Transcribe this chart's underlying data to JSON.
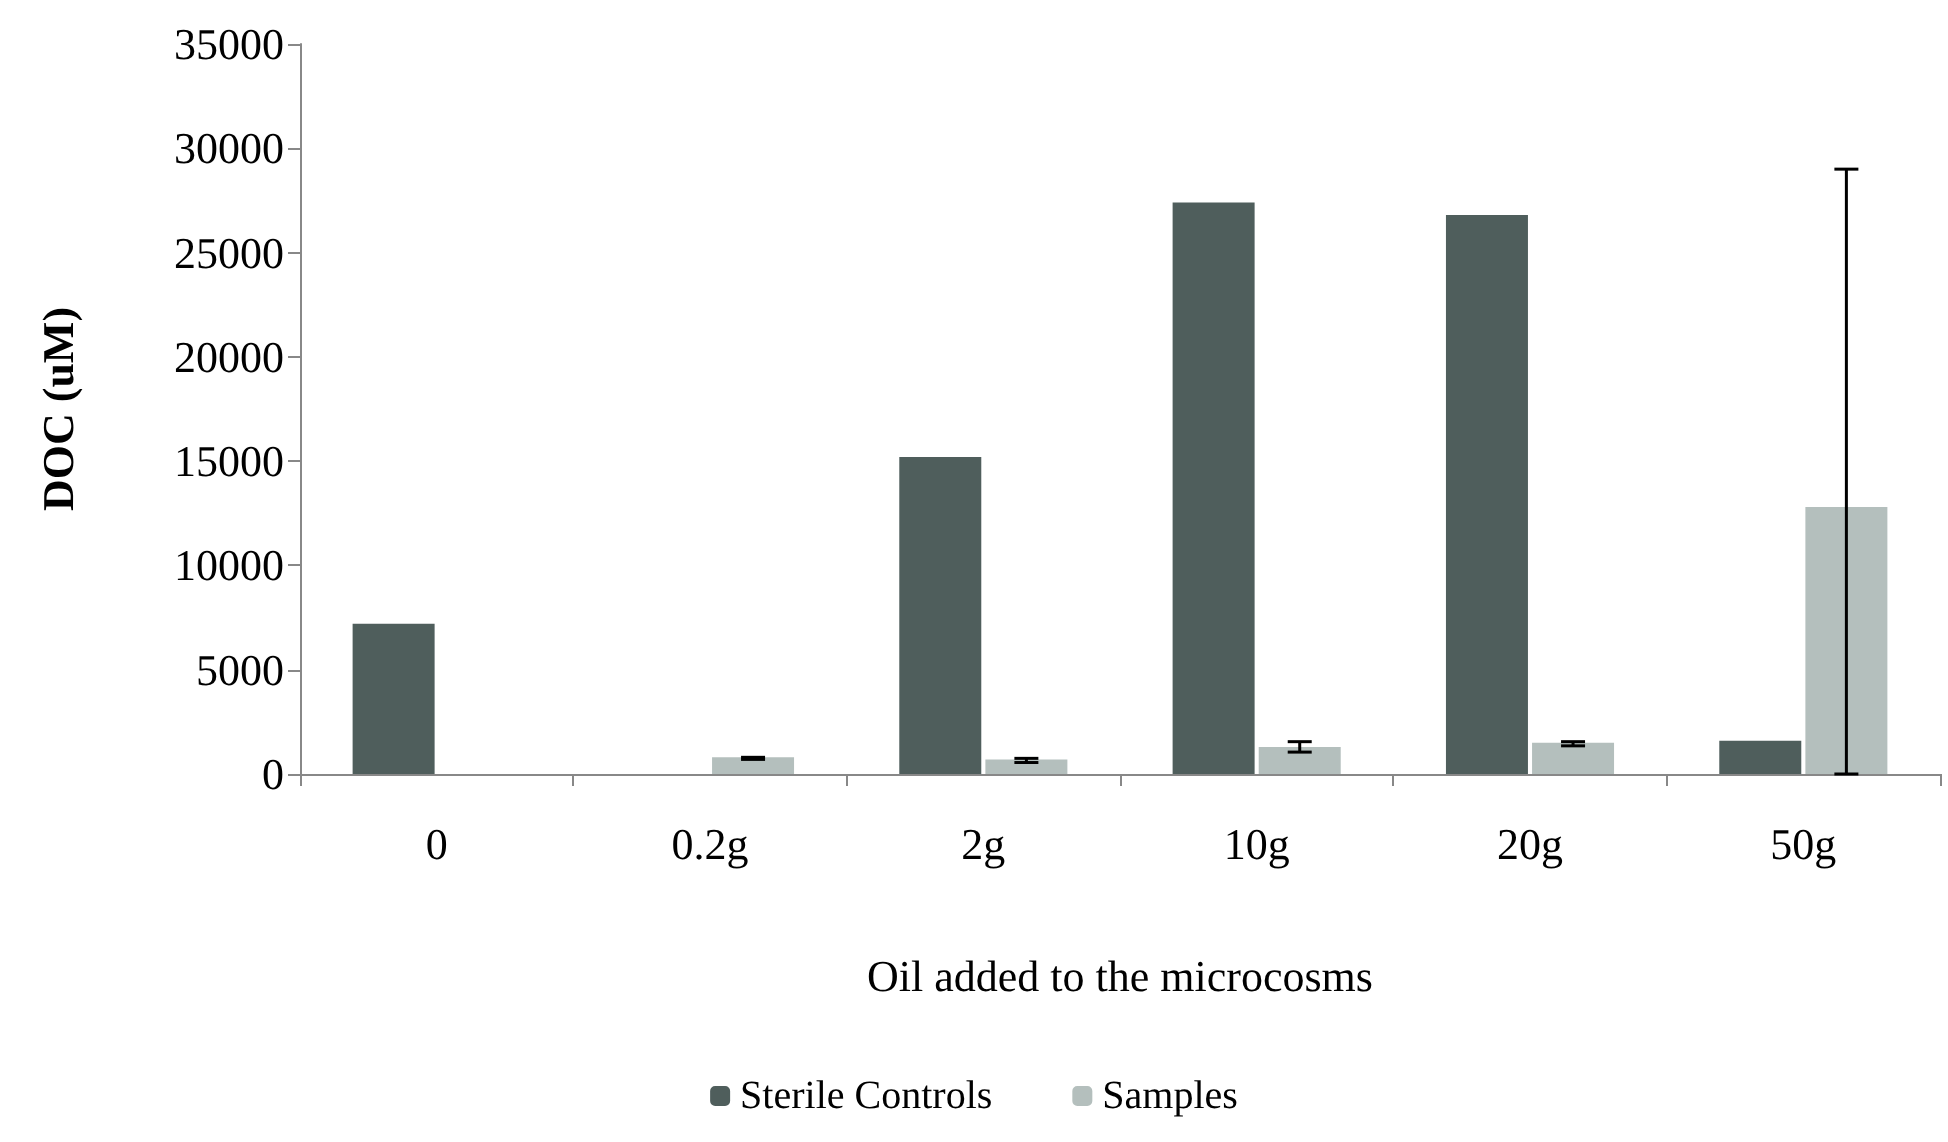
{
  "chart_data": {
    "type": "bar",
    "xlabel": "Oil added to the microcosms",
    "ylabel": "DOC (uM)",
    "categories": [
      "0",
      "0.2g",
      "2g",
      "10g",
      "20g",
      "50g"
    ],
    "series": [
      {
        "name": "Sterile Controls",
        "color": "#4f5e5c",
        "values": [
          7200,
          null,
          15200,
          27400,
          26800,
          1600
        ]
      },
      {
        "name": "Samples",
        "color": "#b4bfbd",
        "values": [
          null,
          800,
          700,
          1300,
          1500,
          12800
        ],
        "errors": [
          null,
          [
            700,
            800
          ],
          [
            550,
            750
          ],
          [
            1050,
            1550
          ],
          [
            1350,
            1550
          ],
          [
            0,
            29000
          ]
        ]
      }
    ],
    "ylim": [
      0,
      35000
    ],
    "yticks": [
      0,
      5000,
      10000,
      15000,
      20000,
      25000,
      30000,
      35000
    ],
    "grid": false,
    "legend": "bottom"
  }
}
